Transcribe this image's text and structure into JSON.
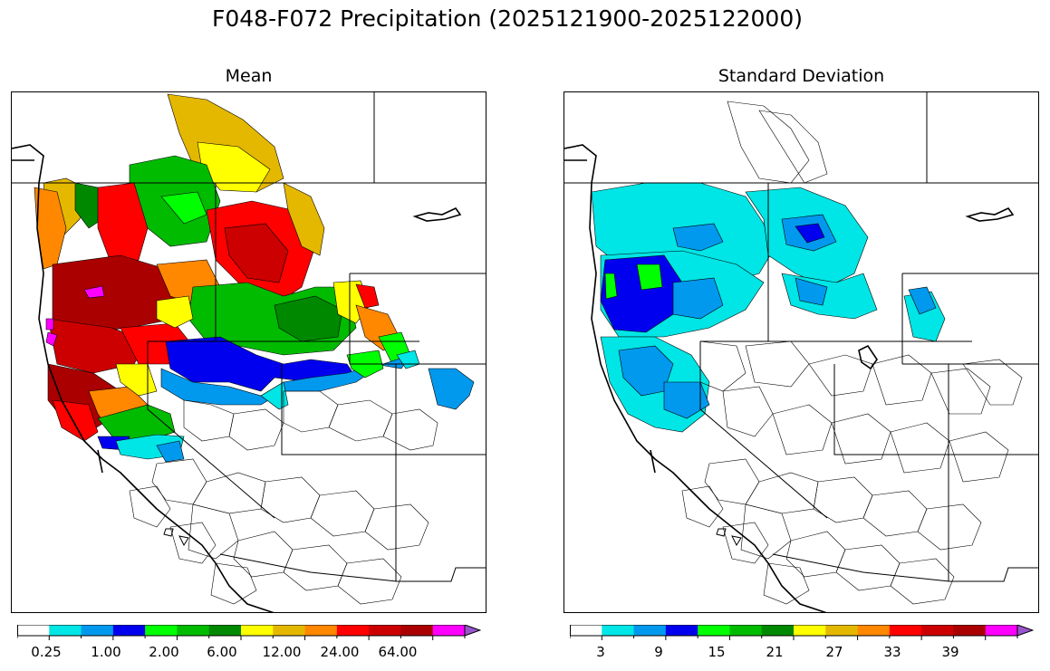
{
  "figure": {
    "title": "F048-F072 Precipitation (2025121900-2025122000)"
  },
  "panels": [
    {
      "title": "Mean"
    },
    {
      "title": "Standard Deviation"
    }
  ],
  "mean_colorbar": {
    "colors": [
      "#ffffff",
      "#00e5e5",
      "#0099ee",
      "#0000ee",
      "#00ff00",
      "#00bb00",
      "#008800",
      "#ffff00",
      "#e5b800",
      "#ff8800",
      "#ff0000",
      "#cc0000",
      "#aa0000",
      "#ff00ff",
      "#9955cc"
    ],
    "tick_labels": [
      "0.25",
      "1.00",
      "2.00",
      "6.00",
      "12.00",
      "24.00",
      "64.00"
    ],
    "extend": "max"
  },
  "std_colorbar": {
    "colors": [
      "#ffffff",
      "#00e5e5",
      "#0099ee",
      "#0000ee",
      "#00ff00",
      "#00bb00",
      "#008800",
      "#ffff00",
      "#e5b800",
      "#ff8800",
      "#ff0000",
      "#cc0000",
      "#aa0000",
      "#ff00ff",
      "#9955cc"
    ],
    "tick_labels": [
      "3",
      "9",
      "15",
      "21",
      "27",
      "33",
      "39"
    ],
    "extend": "max"
  },
  "legend_colors": {
    "white": "#ffffff",
    "cyan": "#00e5e5",
    "lightblue": "#0099ee",
    "blue": "#0000ee",
    "lime": "#00ff00",
    "green": "#00bb00",
    "darkgreen": "#008800",
    "yellow": "#ffff00",
    "gold": "#e5b800",
    "orange": "#ff8800",
    "red": "#ff0000",
    "darkred": "#cc0000",
    "maroon": "#aa0000",
    "magenta": "#ff00ff",
    "purple": "#9955cc"
  }
}
